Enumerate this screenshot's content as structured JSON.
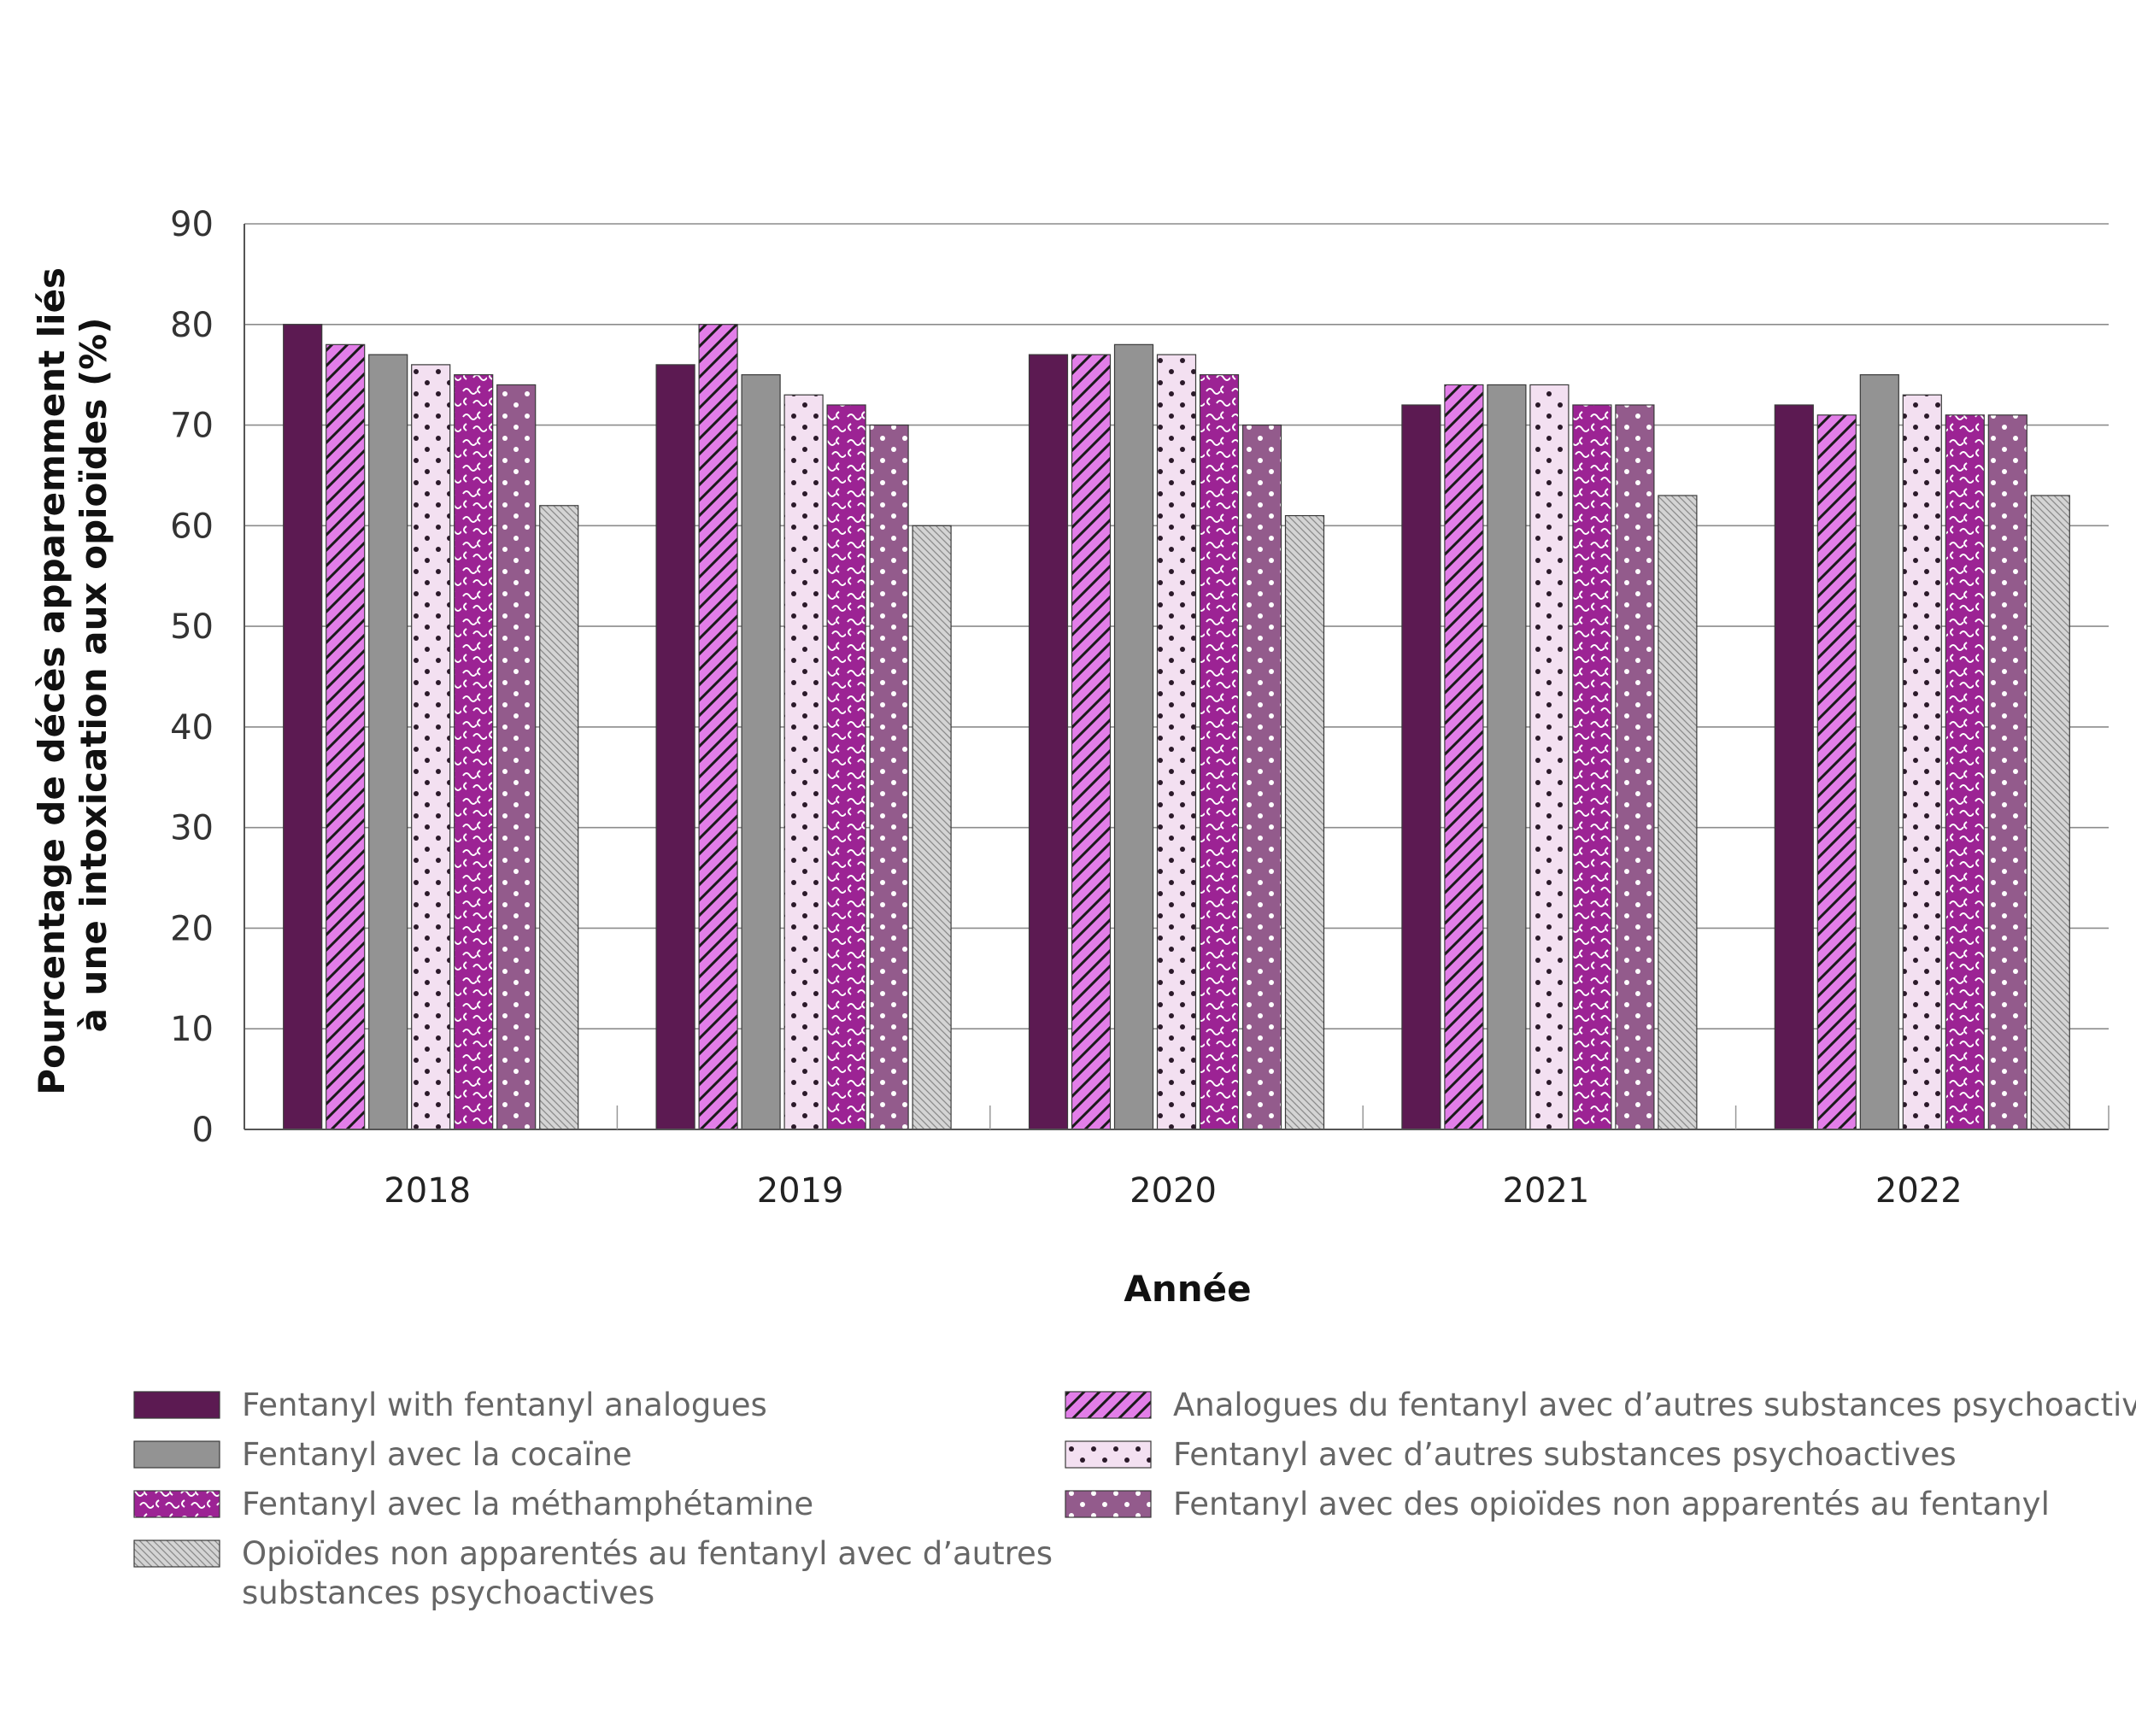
{
  "chart_data": {
    "type": "bar",
    "title": "",
    "xlabel": "Année",
    "ylabel_lines": [
      "Pourcentage de décès apparemment liés",
      "à une intoxication aux opioïdes  (%)"
    ],
    "ylim": [
      0,
      90
    ],
    "yticks": [
      "0",
      "10",
      "20",
      "30",
      "40",
      "50",
      "60",
      "70",
      "80",
      "90"
    ],
    "grid": true,
    "legend_position": "bottom",
    "categories": [
      "2018",
      "2019",
      "2020",
      "2021",
      "2022"
    ],
    "series": [
      {
        "name": "Fentanyl with fentanyl analogues",
        "values": [
          80,
          76,
          77,
          72,
          72
        ],
        "color": "#5c1a52",
        "pattern": "solid"
      },
      {
        "name": "Analogues du fentanyl avec d’autres substances psychoactives",
        "values": [
          78,
          80,
          77,
          74,
          71
        ],
        "color": "#e27ee8",
        "pattern": "diagonal-lines"
      },
      {
        "name": "Fentanyl avec la cocaïne",
        "values": [
          77,
          75,
          78,
          74,
          75
        ],
        "color": "#939393",
        "pattern": "solid"
      },
      {
        "name": "Fentanyl avec d’autres substances psychoactives",
        "values": [
          76,
          73,
          77,
          74,
          73
        ],
        "color": "#f3e0f1",
        "pattern": "dots-dark"
      },
      {
        "name": "Fentanyl avec la méthamphétamine",
        "values": [
          75,
          72,
          75,
          72,
          71
        ],
        "color": "#9c2394",
        "pattern": "squiggle"
      },
      {
        "name": "Fentanyl avec des opioïdes non apparentés au fentanyl",
        "values": [
          74,
          70,
          70,
          72,
          71
        ],
        "color": "#935b8c",
        "pattern": "dots-light"
      },
      {
        "name": "Opioïdes non apparentés au fentanyl avec d’autres substances psychoactives",
        "values": [
          62,
          60,
          61,
          63,
          63
        ],
        "color": "#d4d4d4",
        "pattern": "fine-hatch"
      }
    ]
  },
  "legend": {
    "left": [
      {
        "series": 0,
        "lines": [
          "Fentanyl with fentanyl analogues"
        ]
      },
      {
        "series": 2,
        "lines": [
          "Fentanyl avec la cocaïne"
        ]
      },
      {
        "series": 4,
        "lines": [
          "Fentanyl avec la méthamphétamine"
        ]
      },
      {
        "series": 6,
        "lines": [
          "Opioïdes non apparentés au fentanyl avec d’autres",
          "substances psychoactives"
        ]
      }
    ],
    "right": [
      {
        "series": 1,
        "lines": [
          "Analogues du fentanyl avec d’autres substances psychoactives"
        ]
      },
      {
        "series": 3,
        "lines": [
          "Fentanyl avec d’autres substances psychoactives"
        ]
      },
      {
        "series": 5,
        "lines": [
          "Fentanyl avec des opioïdes non apparentés au fentanyl"
        ]
      }
    ]
  }
}
